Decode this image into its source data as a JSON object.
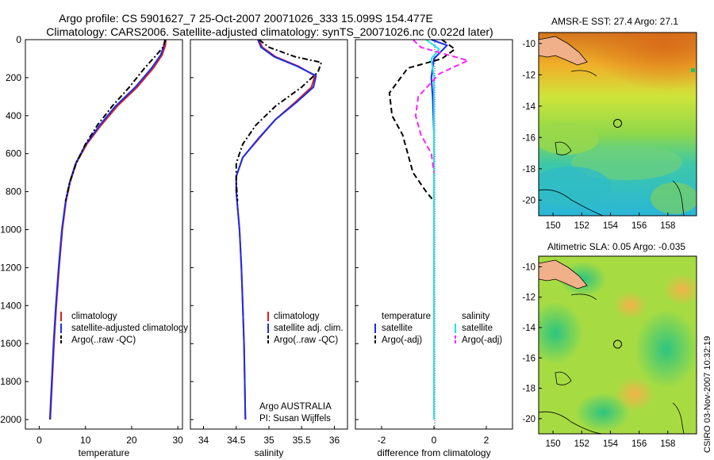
{
  "title_line1": "Argo profile: CS 5901627_7 25-Oct-2007 20071026_333 15.099S 154.477E",
  "title_line2": "Climatology: CARS2006. Satellite-adjusted climatology: synTS_20071026.nc (0.022d later)",
  "footer_stamp": "CSIRO 03-Nov-2007 10:32:19",
  "colors": {
    "climatology": "#e02020",
    "satellite": "#1a2de8",
    "argo": "#000000",
    "sal_satellite": "#22e0f0",
    "sal_argo": "#ff22ff"
  },
  "chart_data": [
    {
      "type": "line",
      "name": "temperature",
      "xlabel": "temperature",
      "ylabel": "",
      "xlim": [
        -3,
        31
      ],
      "ylim": [
        2050,
        0
      ],
      "xticks": [
        0,
        10,
        20,
        30
      ],
      "yticks": [
        0,
        200,
        400,
        600,
        800,
        1000,
        1200,
        1400,
        1600,
        1800,
        2000
      ],
      "legend": [
        "climatology",
        "satellite-adjusted climatology",
        "Argo(..raw -QC)"
      ],
      "series": [
        {
          "name": "climatology",
          "color_key": "climatology",
          "dash": "",
          "x": [
            27.4,
            27.3,
            26.6,
            24.7,
            21.2,
            16.9,
            13.4,
            10.3,
            8.0,
            6.7,
            5.8,
            5.0,
            4.3,
            3.7,
            3.2,
            2.8,
            2.6,
            2.4
          ],
          "y": [
            0,
            30,
            80,
            150,
            250,
            350,
            450,
            550,
            650,
            750,
            850,
            1000,
            1200,
            1400,
            1600,
            1800,
            1900,
            2000
          ]
        },
        {
          "name": "satellite-adjusted climatology",
          "color_key": "satellite",
          "dash": "",
          "x": [
            27.2,
            27.0,
            26.3,
            24.3,
            20.8,
            16.5,
            13.1,
            10.1,
            7.9,
            6.6,
            5.7,
            4.9,
            4.2,
            3.6,
            3.1,
            2.7,
            2.5,
            2.3
          ],
          "y": [
            0,
            30,
            80,
            150,
            250,
            350,
            450,
            550,
            650,
            750,
            850,
            1000,
            1200,
            1400,
            1600,
            1800,
            1900,
            2000
          ]
        },
        {
          "name": "Argo(..raw -QC)",
          "color_key": "argo",
          "dash": "7,3,2,3",
          "x": [
            27.3,
            26.8,
            25.0,
            22.8,
            19.5,
            15.8,
            12.6,
            10.0,
            8.0,
            6.6,
            5.7
          ],
          "y": [
            0,
            40,
            90,
            150,
            250,
            350,
            450,
            550,
            650,
            750,
            850
          ]
        }
      ]
    },
    {
      "type": "line",
      "name": "salinity",
      "xlabel": "salinity",
      "ylabel": "",
      "xlim": [
        33.8,
        36.2
      ],
      "ylim": [
        2050,
        0
      ],
      "xticks": [
        34,
        34.5,
        35,
        35.5,
        36
      ],
      "yticks": [
        0,
        200,
        400,
        600,
        800,
        1000,
        1200,
        1400,
        1600,
        1800,
        2000
      ],
      "legend": [
        "climatology",
        "satellite adj. clim.",
        "Argo(..raw -QC)"
      ],
      "caption_line1": "Argo AUSTRALIA",
      "caption_line2": "PI: Susan Wijffels",
      "series": [
        {
          "name": "climatology",
          "color_key": "climatology",
          "dash": "",
          "x": [
            34.85,
            34.9,
            35.1,
            35.45,
            35.7,
            35.65,
            35.4,
            35.1,
            34.85,
            34.6,
            34.5,
            34.5,
            34.55,
            34.58,
            34.6,
            34.62,
            34.63,
            34.64
          ],
          "y": [
            0,
            40,
            90,
            140,
            190,
            250,
            330,
            420,
            520,
            620,
            720,
            800,
            1000,
            1200,
            1400,
            1600,
            1800,
            2000
          ]
        },
        {
          "name": "satellite adj. clim.",
          "color_key": "satellite",
          "dash": "",
          "x": [
            34.83,
            34.88,
            35.08,
            35.43,
            35.72,
            35.68,
            35.42,
            35.1,
            34.84,
            34.6,
            34.5,
            34.5,
            34.55,
            34.58,
            34.6,
            34.62,
            34.63,
            34.64
          ],
          "y": [
            0,
            40,
            90,
            140,
            190,
            250,
            330,
            420,
            520,
            620,
            720,
            800,
            1000,
            1200,
            1400,
            1600,
            1800,
            2000
          ]
        },
        {
          "name": "Argo(..raw -QC)",
          "color_key": "argo",
          "dash": "7,3,2,3",
          "x": [
            34.85,
            35.0,
            35.4,
            35.8,
            35.75,
            35.5,
            35.1,
            34.8,
            34.6,
            34.5,
            34.5,
            34.52
          ],
          "y": [
            0,
            40,
            90,
            120,
            170,
            250,
            350,
            450,
            550,
            650,
            750,
            850
          ]
        }
      ]
    },
    {
      "type": "line",
      "name": "difference",
      "xlabel": "difference from climatology",
      "ylabel": "",
      "xlim": [
        -3,
        3
      ],
      "ylim": [
        2050,
        0
      ],
      "xticks": [
        -2,
        0,
        2
      ],
      "yticks": [
        0,
        200,
        400,
        600,
        800,
        1000,
        1200,
        1400,
        1600,
        1800,
        2000
      ],
      "legend_left_title": "temperature",
      "legend_right_title": "salinity",
      "legend": [
        "satellite",
        "Argo(-adj)",
        "satellite",
        "Argo(-adj)"
      ],
      "series": [
        {
          "name": "temperature satellite",
          "color_key": "satellite",
          "dash": "",
          "x": [
            -0.1,
            0.5,
            0.0,
            -0.1,
            -0.05,
            0.0,
            0.0,
            0.0
          ],
          "y": [
            0,
            30,
            100,
            200,
            300,
            500,
            1000,
            2000
          ]
        },
        {
          "name": "temperature Argo(-adj)",
          "color_key": "argo",
          "dash": "7,4",
          "x": [
            0.3,
            0.8,
            0.3,
            -1.0,
            -1.7,
            -1.6,
            -1.2,
            -1.0,
            -0.8,
            -0.3,
            0.0
          ],
          "y": [
            0,
            50,
            100,
            150,
            280,
            400,
            500,
            600,
            700,
            800,
            850
          ]
        },
        {
          "name": "salinity satellite",
          "color_key": "sal_satellite",
          "dash": "",
          "x": [
            -0.3,
            0.2,
            -0.1,
            0.0,
            0.0,
            0.0,
            0.0
          ],
          "y": [
            0,
            50,
            100,
            200,
            400,
            1000,
            2000
          ]
        },
        {
          "name": "salinity Argo(-adj)",
          "color_key": "sal_argo",
          "dash": "7,4",
          "x": [
            -0.8,
            -0.5,
            1.3,
            0.2,
            -0.6,
            -0.7,
            -0.5,
            -0.1,
            0.0
          ],
          "y": [
            0,
            40,
            110,
            180,
            300,
            400,
            500,
            600,
            700
          ]
        }
      ]
    },
    {
      "type": "heatmap",
      "name": "sst-map",
      "title": "AMSR-E SST: 27.4 Argo: 27.1",
      "xlim": [
        149,
        160
      ],
      "ylim": [
        -21,
        -9.3
      ],
      "xticks": [
        150,
        152,
        154,
        156,
        158
      ],
      "yticks": [
        -10,
        -12,
        -14,
        -16,
        -18,
        -20
      ],
      "argo_marker": {
        "lon": 154.5,
        "lat": -15.1
      }
    },
    {
      "type": "heatmap",
      "name": "sla-map",
      "title": "Altimetric SLA: 0.05 Argo: -0.035",
      "xlim": [
        149,
        160
      ],
      "ylim": [
        -21,
        -9.3
      ],
      "xticks": [
        150,
        152,
        154,
        156,
        158
      ],
      "yticks": [
        -10,
        -12,
        -14,
        -16,
        -18,
        -20
      ],
      "argo_marker": {
        "lon": 154.5,
        "lat": -15.1
      }
    }
  ]
}
